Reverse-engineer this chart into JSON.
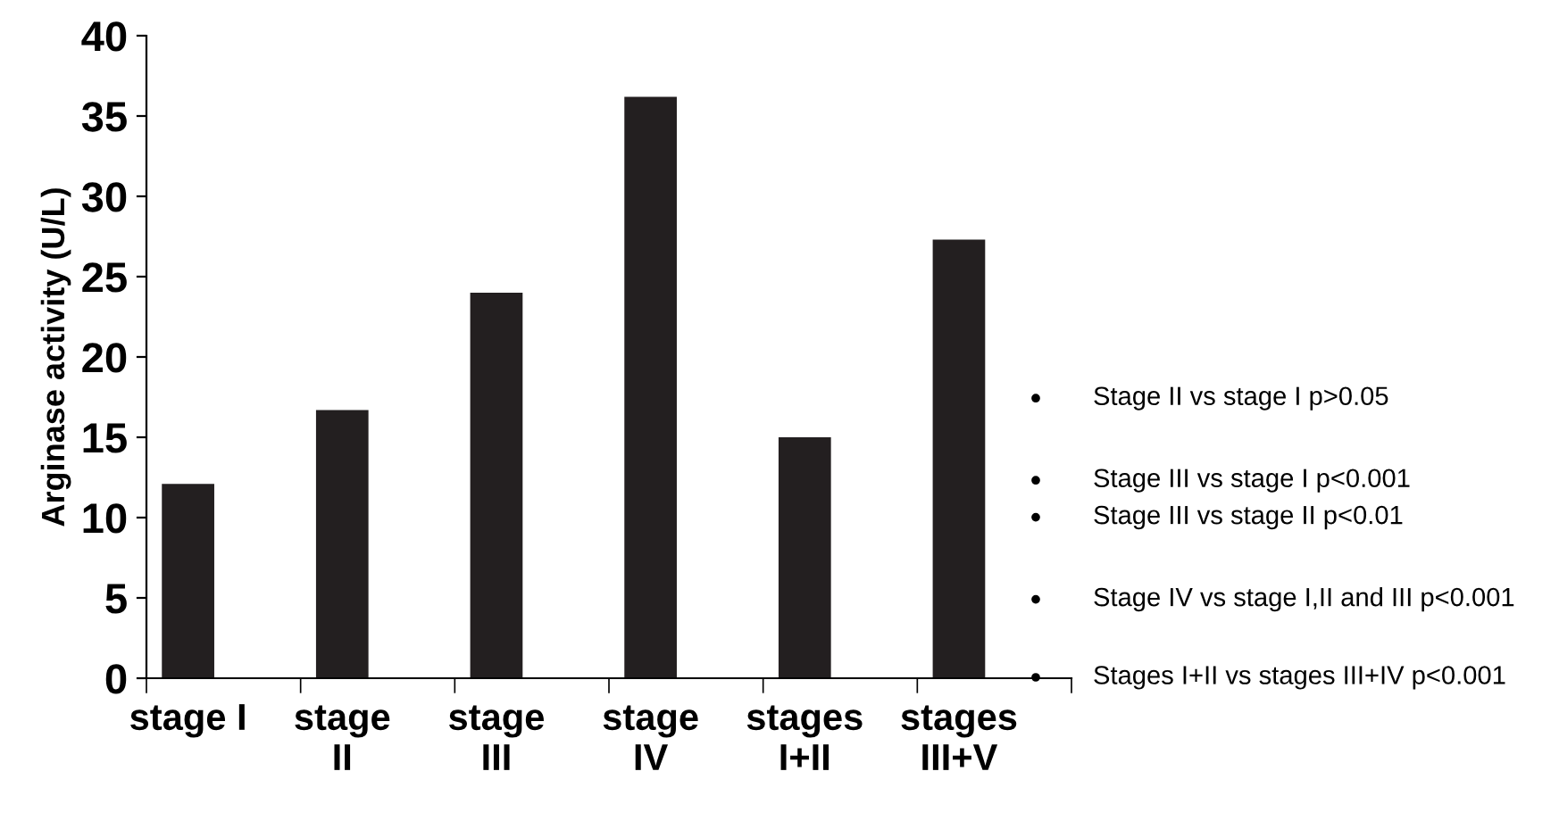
{
  "chart_data": {
    "type": "bar",
    "ylabel": "Arginase activity (U/L)",
    "categories": [
      "stage I",
      "stage\nII",
      "stage\nIII",
      "stage\nIV",
      "stages\nI+II",
      "stages\nIII+V"
    ],
    "values": [
      12.1,
      16.7,
      24.0,
      36.2,
      15.0,
      27.3
    ],
    "color": "#231f20",
    "ylim": [
      0,
      40
    ],
    "yticks": [
      0,
      5,
      10,
      15,
      20,
      25,
      30,
      35,
      40
    ],
    "grid": false,
    "annotations": [
      "Stage II vs stage I p>0.05",
      "Stage III vs stage I p<0.001",
      "Stage III vs stage II p<0.01",
      "Stage IV vs stage I,II and III p<0.001",
      "Stages I+II vs stages III+IV p<0.001"
    ]
  }
}
